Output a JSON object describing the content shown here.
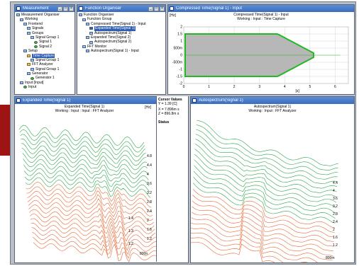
{
  "windows": {
    "measurement": {
      "title": "Measurement"
    },
    "function": {
      "title": "Function Organiser"
    },
    "compressed": {
      "title": "Compressed Time(Signal 1) - Input"
    },
    "expanded": {
      "title": "Expanded Time(Signal 1)"
    },
    "autospectrum": {
      "title": "Autospectrum(Signal 1)"
    }
  },
  "measurement_tree": [
    {
      "label": "Measurement Organiser",
      "indent": 0,
      "icon": "folder-icon"
    },
    {
      "label": "Working",
      "indent": 1,
      "icon": "folder-icon"
    },
    {
      "label": "Frontend",
      "indent": 2,
      "icon": "folder-icon"
    },
    {
      "label": "Signals",
      "indent": 3,
      "icon": "folder-icon"
    },
    {
      "label": "Groups",
      "indent": 3,
      "icon": "folder-icon"
    },
    {
      "label": "Signal Group 1",
      "indent": 4,
      "icon": "folder-icon"
    },
    {
      "label": "Signal 1",
      "indent": 5,
      "icon": "signal-icon"
    },
    {
      "label": "Signal 2",
      "indent": 5,
      "icon": "signal-icon"
    },
    {
      "label": "Setup",
      "indent": 2,
      "icon": "folder-icon"
    },
    {
      "label": "Time Capture",
      "indent": 3,
      "icon": "analyzer-icon",
      "selected": true
    },
    {
      "label": "Signal Group 1",
      "indent": 4,
      "icon": "folder-icon"
    },
    {
      "label": "FFT Analyzer",
      "indent": 3,
      "icon": "analyzer-icon"
    },
    {
      "label": "Signal Group 1",
      "indent": 4,
      "icon": "folder-icon"
    },
    {
      "label": "Generator",
      "indent": 3,
      "icon": "folder-icon"
    },
    {
      "label": "Generator 1",
      "indent": 4,
      "icon": "signal-icon"
    },
    {
      "label": "Input [Input]",
      "indent": 1,
      "icon": "folder-icon"
    },
    {
      "label": "Input",
      "indent": 2,
      "icon": "signal-icon"
    }
  ],
  "function_tree": [
    {
      "label": "Function Organiser",
      "indent": 0,
      "icon": "folder-icon"
    },
    {
      "label": "Function Group",
      "indent": 1,
      "icon": "folder-icon"
    },
    {
      "label": "Compressed Time(Signal 1) - Input",
      "indent": 2,
      "icon": "function-icon"
    },
    {
      "label": "Expanded Time(Signal 1)",
      "indent": 3,
      "icon": "function-icon",
      "selected": true
    },
    {
      "label": "Autospectrum(Signal 1)",
      "indent": 3,
      "icon": "function-icon"
    },
    {
      "label": "Expanded Time(Signal 2)",
      "indent": 2,
      "icon": "function-icon"
    },
    {
      "label": "Autospectrum(Signal 2)",
      "indent": 3,
      "icon": "function-icon"
    },
    {
      "label": "FFT Monitor",
      "indent": 1,
      "icon": "folder-icon"
    },
    {
      "label": "Autospectrum(Signal 1) - Input",
      "indent": 2,
      "icon": "function-icon"
    }
  ],
  "compressed_plot": {
    "unit": "[Hz]",
    "header1": "Compressed Time(Signal 1) - Input",
    "header2": "Working : Input : Time Capture",
    "yticks": [
      "2",
      "1.5",
      "1",
      "500m",
      "0",
      "-500m",
      "-1",
      "-1.5",
      "-2"
    ],
    "xticks": [
      "0",
      "1",
      "2",
      "3",
      "4",
      "5",
      "6"
    ],
    "xunit": "[s]",
    "colors": {
      "fill": "#b7b7b7",
      "edge": "#24b824"
    }
  },
  "expanded_plot": {
    "unit": "[Hz]",
    "header1": "Expanded Time(Signal 1)",
    "header2": "Working : Input : Input : FFT Analyzer",
    "xticks": [
      "1.4",
      "1.3",
      "1.2"
    ],
    "zticks": [
      "4.8",
      "4.4",
      "4",
      "3.6",
      "3.2",
      "2.8",
      "2.4",
      "2",
      "1.6",
      "1.2"
    ],
    "zunit": "800n"
  },
  "cursor_panel": {
    "title": "Cursor Values",
    "line1": "Y = 1.39 [C]",
    "line2": "X = 7.896m s",
    "line3": "Z = 896.8m s",
    "status_label": "Status"
  },
  "autospectrum_plot": {
    "header1": "Autospectrum(Signal 1)",
    "header2": "Working : Input : FFT Analyzer",
    "zticks": [
      "4.4",
      "4",
      "3.6",
      "3.2",
      "2.8",
      "2.4",
      "2",
      "1.6",
      "1.2"
    ],
    "zunit": "800m"
  }
}
